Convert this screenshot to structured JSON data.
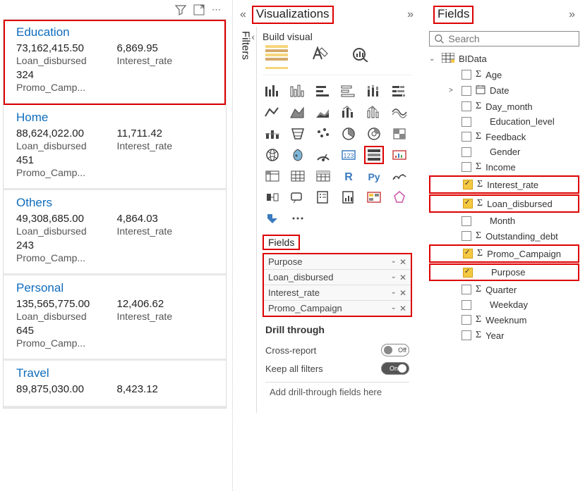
{
  "leftPanel": {
    "cards": [
      {
        "title": "Education",
        "v1": "73,162,415.50",
        "l1": "Loan_disbursed",
        "v2": "6,869.95",
        "l2": "Interest_rate",
        "v3": "324",
        "l3": "Promo_Camp...",
        "highlighted": true
      },
      {
        "title": "Home",
        "v1": "88,624,022.00",
        "l1": "Loan_disbursed",
        "v2": "11,711.42",
        "l2": "Interest_rate",
        "v3": "451",
        "l3": "Promo_Camp...",
        "highlighted": false
      },
      {
        "title": "Others",
        "v1": "49,308,685.00",
        "l1": "Loan_disbursed",
        "v2": "4,864.03",
        "l2": "Interest_rate",
        "v3": "243",
        "l3": "Promo_Camp...",
        "highlighted": false
      },
      {
        "title": "Personal",
        "v1": "135,565,775.00",
        "l1": "Loan_disbursed",
        "v2": "12,406.62",
        "l2": "Interest_rate",
        "v3": "645",
        "l3": "Promo_Camp...",
        "highlighted": false
      },
      {
        "title": "Travel",
        "v1": "89,875,030.00",
        "l1": "",
        "v2": "8,423.12",
        "l2": "",
        "v3": "",
        "l3": "",
        "highlighted": false
      }
    ]
  },
  "centerPanel": {
    "title": "Visualizations",
    "buildLabel": "Build visual",
    "filtersLabel": "Filters",
    "fieldsLabel": "Fields",
    "wells": [
      "Purpose",
      "Loan_disbursed",
      "Interest_rate",
      "Promo_Campaign"
    ],
    "drillTitle": "Drill through",
    "crossReport": "Cross-report",
    "keepFilters": "Keep all filters",
    "drillDrop": "Add drill-through fields here",
    "toggleOff": "Off",
    "toggleOn": "On"
  },
  "rightPanel": {
    "title": "Fields",
    "searchPlaceholder": "Search",
    "tableName": "BIData",
    "fields": [
      {
        "name": "Age",
        "checked": false,
        "sigma": true,
        "hl": false,
        "arrow": "",
        "cal": false
      },
      {
        "name": "Date",
        "checked": false,
        "sigma": false,
        "hl": false,
        "arrow": ">",
        "cal": true
      },
      {
        "name": "Day_month",
        "checked": false,
        "sigma": true,
        "hl": false,
        "arrow": "",
        "cal": false
      },
      {
        "name": "Education_level",
        "checked": false,
        "sigma": false,
        "hl": false,
        "arrow": "",
        "cal": false
      },
      {
        "name": "Feedback",
        "checked": false,
        "sigma": true,
        "hl": false,
        "arrow": "",
        "cal": false
      },
      {
        "name": "Gender",
        "checked": false,
        "sigma": false,
        "hl": false,
        "arrow": "",
        "cal": false
      },
      {
        "name": "Income",
        "checked": false,
        "sigma": true,
        "hl": false,
        "arrow": "",
        "cal": false
      },
      {
        "name": "Interest_rate",
        "checked": true,
        "sigma": true,
        "hl": true,
        "arrow": "",
        "cal": false
      },
      {
        "name": "Loan_disbursed",
        "checked": true,
        "sigma": true,
        "hl": true,
        "arrow": "",
        "cal": false
      },
      {
        "name": "Month",
        "checked": false,
        "sigma": false,
        "hl": false,
        "arrow": "",
        "cal": false
      },
      {
        "name": "Outstanding_debt",
        "checked": false,
        "sigma": true,
        "hl": false,
        "arrow": "",
        "cal": false
      },
      {
        "name": "Promo_Campaign",
        "checked": true,
        "sigma": true,
        "hl": true,
        "arrow": "",
        "cal": false
      },
      {
        "name": "Purpose",
        "checked": true,
        "sigma": false,
        "hl": true,
        "arrow": "",
        "cal": false
      },
      {
        "name": "Quarter",
        "checked": false,
        "sigma": true,
        "hl": false,
        "arrow": "",
        "cal": false
      },
      {
        "name": "Weekday",
        "checked": false,
        "sigma": false,
        "hl": false,
        "arrow": "",
        "cal": false
      },
      {
        "name": "Weeknum",
        "checked": false,
        "sigma": true,
        "hl": false,
        "arrow": "",
        "cal": false
      },
      {
        "name": "Year",
        "checked": false,
        "sigma": true,
        "hl": false,
        "arrow": "",
        "cal": false
      }
    ]
  },
  "colors": {
    "highlight": "#d00",
    "link": "#0f6cbd",
    "accent": "#f5c842"
  }
}
